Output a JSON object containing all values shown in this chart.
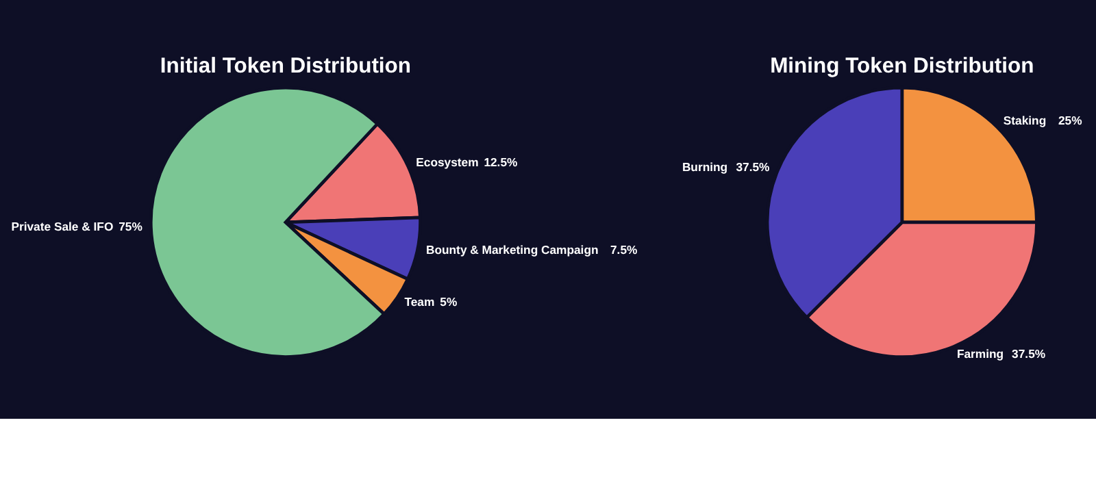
{
  "chart_data": [
    {
      "type": "pie",
      "title": "Initial Token Distribution",
      "categories": [
        "Ecosystem",
        "Bounty & Marketing Campaign",
        "Team",
        "Private Sale & IFO"
      ],
      "values": [
        12.5,
        7.5,
        5,
        75
      ],
      "colors": [
        "#f07575",
        "#4a3fb8",
        "#f39240",
        "#7bc694"
      ],
      "value_labels": [
        "12.5%",
        "7.5%",
        "5%",
        "75%"
      ],
      "legend": false
    },
    {
      "type": "pie",
      "title": "Mining Token Distribution",
      "categories": [
        "Staking",
        "Farming",
        "Burning"
      ],
      "values": [
        25,
        37.5,
        37.5
      ],
      "colors": [
        "#f39240",
        "#f07575",
        "#4a3fb8"
      ],
      "value_labels": [
        "25%",
        "37.5%",
        "37.5%"
      ],
      "legend": false
    }
  ]
}
